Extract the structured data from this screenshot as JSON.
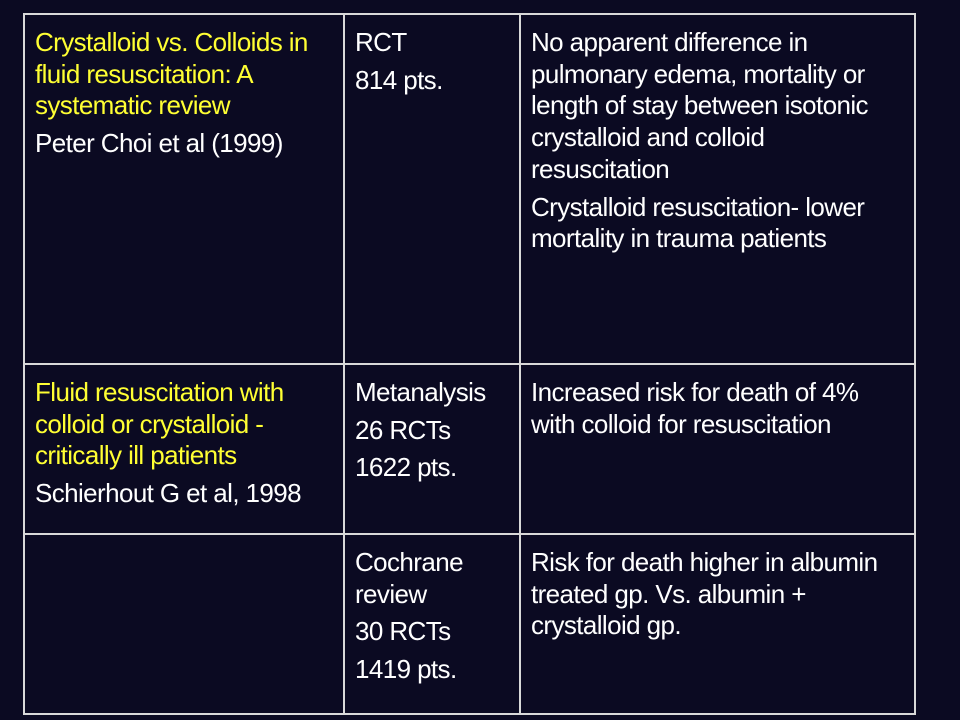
{
  "rows": [
    {
      "study_title": "Crystalloid vs. Colloids in fluid resuscitation: A systematic review",
      "study_author": "Peter Choi et al (1999)",
      "design": [
        "RCT",
        "814 pts."
      ],
      "findings": [
        "No apparent difference in pulmonary edema, mortality or length of stay between isotonic crystalloid and colloid resuscitation",
        "Crystalloid resuscitation- lower mortality in trauma patients"
      ]
    },
    {
      "study_title": "Fluid resuscitation with colloid or crystalloid - critically ill patients",
      "study_author": "Schierhout G et al, 1998",
      "design": [
        "Metanalysis",
        "26 RCTs",
        "1622 pts."
      ],
      "findings": [
        "Increased risk for death of 4% with colloid for resuscitation"
      ]
    },
    {
      "study_title": "",
      "study_author": "",
      "design": [
        "Cochrane review",
        "30 RCTs",
        "1419 pts."
      ],
      "findings": [
        "Risk for death higher in albumin treated gp. Vs. albumin + crystalloid gp."
      ]
    }
  ],
  "colors": {
    "background": "#0b0a22",
    "title_text": "#ffff33",
    "body_text": "#ffffff",
    "border": "#d9d9d9"
  }
}
